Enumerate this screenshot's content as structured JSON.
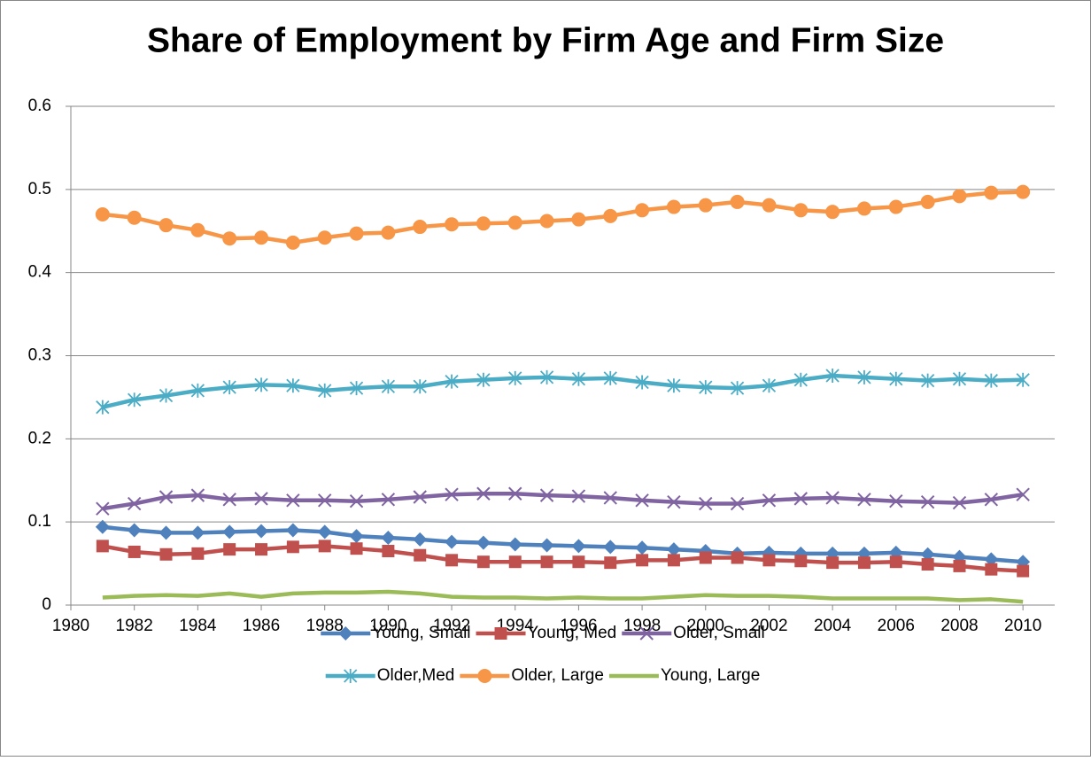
{
  "chart_data": {
    "type": "line",
    "title": "Share of Employment by Firm Age and Firm Size",
    "x": [
      1981,
      1982,
      1983,
      1984,
      1985,
      1986,
      1987,
      1988,
      1989,
      1990,
      1991,
      1992,
      1993,
      1994,
      1995,
      1996,
      1997,
      1998,
      1999,
      2000,
      2001,
      2002,
      2003,
      2004,
      2005,
      2006,
      2007,
      2008,
      2009,
      2010
    ],
    "xlim": [
      1980,
      2011
    ],
    "xticks": [
      1980,
      1982,
      1984,
      1986,
      1988,
      1990,
      1992,
      1994,
      1996,
      1998,
      2000,
      2002,
      2004,
      2006,
      2008,
      2010
    ],
    "ylim": [
      0,
      0.6
    ],
    "yticks": [
      0,
      0.1,
      0.2,
      0.3,
      0.4,
      0.5,
      0.6
    ],
    "grid": true,
    "legend": "bottom",
    "series": [
      {
        "name": "Young, Small",
        "color": "#4f81bd",
        "marker": "diamond",
        "values": [
          0.094,
          0.09,
          0.087,
          0.087,
          0.088,
          0.089,
          0.09,
          0.088,
          0.083,
          0.081,
          0.079,
          0.076,
          0.075,
          0.073,
          0.072,
          0.071,
          0.07,
          0.069,
          0.067,
          0.065,
          0.062,
          0.063,
          0.062,
          0.062,
          0.062,
          0.063,
          0.061,
          0.058,
          0.055,
          0.052
        ]
      },
      {
        "name": "Young, Med",
        "color": "#c0504d",
        "marker": "square",
        "values": [
          0.071,
          0.064,
          0.061,
          0.062,
          0.067,
          0.067,
          0.07,
          0.071,
          0.068,
          0.065,
          0.06,
          0.054,
          0.052,
          0.052,
          0.052,
          0.052,
          0.051,
          0.054,
          0.054,
          0.057,
          0.057,
          0.054,
          0.053,
          0.051,
          0.051,
          0.052,
          0.049,
          0.047,
          0.043,
          0.041
        ]
      },
      {
        "name": "Older, Small",
        "color": "#8064a2",
        "marker": "x",
        "values": [
          0.116,
          0.122,
          0.13,
          0.132,
          0.127,
          0.128,
          0.126,
          0.126,
          0.125,
          0.127,
          0.13,
          0.133,
          0.134,
          0.134,
          0.132,
          0.131,
          0.129,
          0.126,
          0.124,
          0.122,
          0.122,
          0.126,
          0.128,
          0.129,
          0.127,
          0.125,
          0.124,
          0.123,
          0.127,
          0.133
        ]
      },
      {
        "name": "Older,Med",
        "color": "#4bacc6",
        "marker": "star",
        "values": [
          0.238,
          0.247,
          0.252,
          0.258,
          0.262,
          0.265,
          0.264,
          0.258,
          0.261,
          0.263,
          0.263,
          0.269,
          0.271,
          0.273,
          0.274,
          0.272,
          0.273,
          0.268,
          0.264,
          0.262,
          0.261,
          0.264,
          0.271,
          0.276,
          0.274,
          0.272,
          0.27,
          0.272,
          0.27,
          0.271
        ]
      },
      {
        "name": "Older, Large",
        "color": "#f79646",
        "marker": "circle",
        "values": [
          0.47,
          0.466,
          0.457,
          0.451,
          0.441,
          0.442,
          0.436,
          0.442,
          0.447,
          0.448,
          0.455,
          0.458,
          0.459,
          0.46,
          0.462,
          0.464,
          0.468,
          0.475,
          0.479,
          0.481,
          0.485,
          0.481,
          0.475,
          0.473,
          0.477,
          0.479,
          0.485,
          0.492,
          0.496,
          0.497
        ]
      },
      {
        "name": "Young, Large",
        "color": "#9bbb59",
        "marker": "none",
        "values": [
          0.009,
          0.011,
          0.012,
          0.011,
          0.014,
          0.01,
          0.014,
          0.015,
          0.015,
          0.016,
          0.014,
          0.01,
          0.009,
          0.009,
          0.008,
          0.009,
          0.008,
          0.008,
          0.01,
          0.012,
          0.011,
          0.011,
          0.01,
          0.008,
          0.008,
          0.008,
          0.008,
          0.006,
          0.007,
          0.004
        ]
      }
    ]
  }
}
